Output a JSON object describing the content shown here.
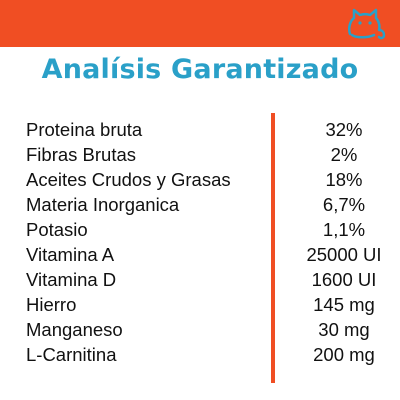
{
  "header": {
    "brand_color": "#f04e23",
    "icon": "cat-icon"
  },
  "title": "Analísis Garantizado",
  "title_color": "#2aa0c8",
  "table": {
    "rows": [
      {
        "label": "Proteina bruta",
        "value": "32%"
      },
      {
        "label": "Fibras Brutas",
        "value": "2%"
      },
      {
        "label": "Aceites Crudos y Grasas",
        "value": "18%"
      },
      {
        "label": "Materia Inorganica",
        "value": "6,7%"
      },
      {
        "label": "Potasio",
        "value": "1,1%"
      },
      {
        "label": "Vitamina A",
        "value": "25000 UI"
      },
      {
        "label": "Vitamina D",
        "value": "1600 UI"
      },
      {
        "label": "Hierro",
        "value": "145 mg"
      },
      {
        "label": "Manganeso",
        "value": "30 mg"
      },
      {
        "label": "L-Carnitina",
        "value": "200 mg"
      }
    ]
  }
}
